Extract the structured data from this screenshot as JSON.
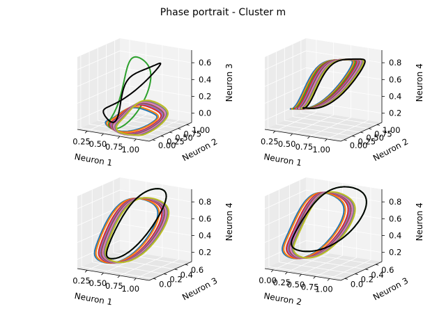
{
  "title": "Phase portrait - Cluster m",
  "chart_data": [
    {
      "type": "line3d",
      "id": "n1-n2-n3",
      "xlabel": "Neuron 1",
      "ylabel": "Neuron 2",
      "zlabel": "Neuron 3",
      "xticks": [
        "0.25",
        "0.50",
        "0.75",
        "1.00"
      ],
      "yticks": [
        "0.00",
        "0.25",
        "0.50",
        "0.75",
        "1.00"
      ],
      "zticks": [
        "0.0",
        "0.2",
        "0.4",
        "0.6"
      ],
      "series_colors": [
        "#1f77b4",
        "#ff7f0e",
        "#2ca02c",
        "#d62728",
        "#9467bd",
        "#8c564b",
        "#e377c2",
        "#7f7f7f",
        "#bcbd22",
        "#000000"
      ]
    },
    {
      "type": "line3d",
      "id": "n1-n2-n4",
      "xlabel": "Neuron 1",
      "ylabel": "Neuron 2",
      "zlabel": "Neuron 4",
      "xticks": [
        "0.25",
        "0.50",
        "0.75",
        "1.00"
      ],
      "yticks": [
        "0.00",
        "0.25",
        "0.50",
        "0.75",
        "1.00"
      ],
      "zticks": [
        "0.2",
        "0.4",
        "0.6",
        "0.8"
      ],
      "series_colors": [
        "#1f77b4",
        "#ff7f0e",
        "#2ca02c",
        "#d62728",
        "#9467bd",
        "#8c564b",
        "#e377c2",
        "#7f7f7f",
        "#bcbd22",
        "#000000"
      ]
    },
    {
      "type": "line3d",
      "id": "n1-n3-n4",
      "xlabel": "Neuron 1",
      "ylabel": "Neuron 3",
      "zlabel": "Neuron 4",
      "xticks": [
        "0.25",
        "0.50",
        "0.75",
        "1.00"
      ],
      "yticks": [
        "0.0",
        "0.2",
        "0.4",
        "0.6"
      ],
      "zticks": [
        "0.2",
        "0.4",
        "0.6",
        "0.8"
      ],
      "series_colors": [
        "#1f77b4",
        "#ff7f0e",
        "#2ca02c",
        "#d62728",
        "#9467bd",
        "#8c564b",
        "#e377c2",
        "#7f7f7f",
        "#bcbd22",
        "#000000"
      ]
    },
    {
      "type": "line3d",
      "id": "n2-n3-n4",
      "xlabel": "Neuron 2",
      "ylabel": "Neuron 3",
      "zlabel": "Neuron 4",
      "xticks": [
        "0.00",
        "0.25",
        "0.50",
        "0.75",
        "1.00"
      ],
      "yticks": [
        "0.0",
        "0.2",
        "0.4",
        "0.6"
      ],
      "zticks": [
        "0.2",
        "0.4",
        "0.6",
        "0.8"
      ],
      "series_colors": [
        "#1f77b4",
        "#ff7f0e",
        "#2ca02c",
        "#d62728",
        "#9467bd",
        "#8c564b",
        "#e377c2",
        "#7f7f7f",
        "#bcbd22",
        "#000000"
      ]
    }
  ]
}
